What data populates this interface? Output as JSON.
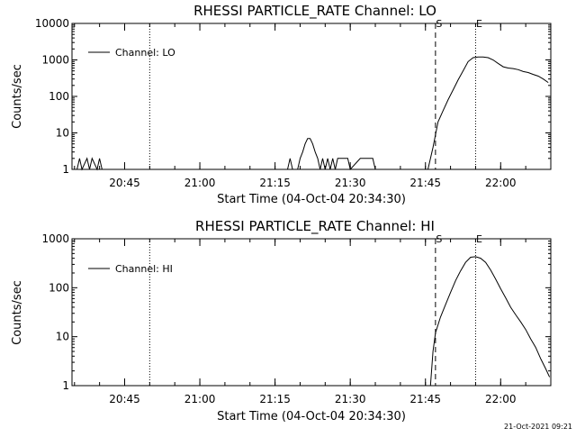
{
  "timestamp": "21-Oct-2021 09:21",
  "chart_data": [
    {
      "type": "line",
      "title": "RHESSI PARTICLE_RATE Channel: LO",
      "xlabel": "Start Time (04-Oct-04 20:34:30)",
      "ylabel": "Counts/sec",
      "yscale": "log",
      "xlim": [
        "20:34:30",
        "22:10:00"
      ],
      "ylim": [
        1,
        10000
      ],
      "x_ticks": [
        "20:45",
        "21:00",
        "21:15",
        "21:30",
        "21:45",
        "22:00"
      ],
      "y_ticks": [
        "1",
        "10",
        "100",
        "1000",
        "10000"
      ],
      "legend": {
        "label": "Channel: LO",
        "placement": "top-left"
      },
      "markers": [
        {
          "label": "S",
          "time": "21:47:00",
          "style": "dashed"
        },
        {
          "label": "E",
          "time": "21:55:00",
          "style": "dotted"
        },
        {
          "label": "",
          "time": "20:50:00",
          "style": "dotted"
        },
        {
          "label": "",
          "time": "22:10:00",
          "style": "dash-dot"
        }
      ],
      "series": [
        {
          "x": [
            "20:35:30",
            "20:36:00",
            "20:36:30",
            "20:37:30",
            "20:38:00",
            "20:38:30",
            "20:39:30",
            "20:40:00",
            "20:40:30",
            "21:17:30",
            "21:18:00",
            "21:18:30",
            "21:19:30",
            "21:20:00",
            "21:20:30",
            "21:21:00",
            "21:21:30",
            "21:22:00",
            "21:22:30",
            "21:23:00",
            "21:23:30",
            "21:24:00",
            "21:24:30",
            "21:25:00",
            "21:25:30",
            "21:26:00",
            "21:26:30",
            "21:27:00",
            "21:27:30",
            "21:28:00",
            "21:28:30",
            "21:29:00",
            "21:29:30",
            "21:30:00",
            "21:32:00",
            "21:32:30",
            "21:34:30",
            "21:35:00",
            "21:45:30",
            "21:46:30",
            "21:47:30",
            "21:48:30",
            "21:49:30",
            "21:50:30",
            "21:51:30",
            "21:52:30",
            "21:53:30",
            "21:54:30",
            "21:55:30",
            "21:56:30",
            "21:57:30",
            "21:58:30",
            "21:59:30",
            "22:00:30",
            "22:01:30",
            "22:02:30",
            "22:03:30",
            "22:04:30",
            "22:05:30",
            "22:06:30",
            "22:07:30",
            "22:08:30",
            "22:09:30"
          ],
          "y": [
            1,
            2,
            1,
            2,
            1,
            2,
            1,
            2,
            1,
            1,
            2,
            1,
            1,
            2,
            3,
            5,
            7,
            7,
            5,
            3,
            2,
            1,
            2,
            1,
            2,
            1,
            2,
            1,
            2,
            2,
            2,
            2,
            2,
            1,
            2,
            2,
            2,
            1,
            1,
            4,
            20,
            40,
            80,
            150,
            280,
            500,
            900,
            1150,
            1200,
            1200,
            1150,
            1000,
            800,
            650,
            600,
            580,
            540,
            480,
            450,
            400,
            360,
            300,
            240
          ]
        }
      ]
    },
    {
      "type": "line",
      "title": "RHESSI PARTICLE_RATE Channel: HI",
      "xlabel": "Start Time (04-Oct-04 20:34:30)",
      "ylabel": "Counts/sec",
      "yscale": "log",
      "xlim": [
        "20:34:30",
        "22:10:00"
      ],
      "ylim": [
        1,
        1000
      ],
      "x_ticks": [
        "20:45",
        "21:00",
        "21:15",
        "21:30",
        "21:45",
        "22:00"
      ],
      "y_ticks": [
        "1",
        "10",
        "100",
        "1000"
      ],
      "legend": {
        "label": "Channel: HI",
        "placement": "top-left"
      },
      "markers": [
        {
          "label": "S",
          "time": "21:47:00",
          "style": "dashed"
        },
        {
          "label": "E",
          "time": "21:55:00",
          "style": "dotted"
        },
        {
          "label": "",
          "time": "20:50:00",
          "style": "dotted"
        },
        {
          "label": "",
          "time": "22:10:00",
          "style": "dash-dot"
        }
      ],
      "series": [
        {
          "x": [
            "21:46:00",
            "21:46:30",
            "21:47:00",
            "21:48:00",
            "21:49:00",
            "21:50:00",
            "21:51:00",
            "21:52:00",
            "21:53:00",
            "21:54:00",
            "21:55:00",
            "21:56:00",
            "21:57:00",
            "21:58:00",
            "21:59:00",
            "22:00:00",
            "22:01:00",
            "22:02:00",
            "22:03:00",
            "22:04:00",
            "22:05:00",
            "22:06:00",
            "22:07:00",
            "22:08:00",
            "22:09:00",
            "22:09:45"
          ],
          "y": [
            1,
            5,
            12,
            25,
            45,
            80,
            140,
            220,
            330,
            420,
            430,
            400,
            330,
            230,
            150,
            95,
            62,
            40,
            28,
            20,
            14,
            9,
            6,
            3.5,
            2.2,
            1.5
          ]
        }
      ]
    }
  ]
}
